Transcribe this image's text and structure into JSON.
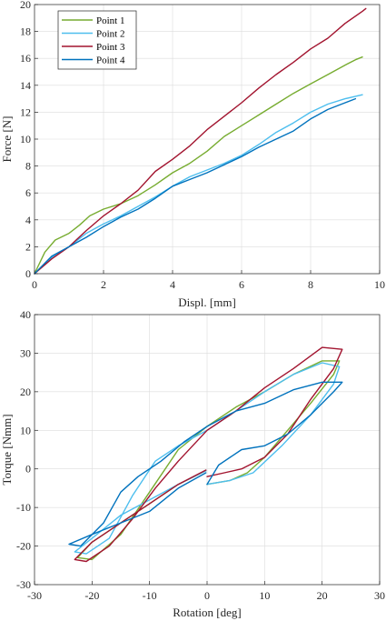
{
  "colors": {
    "point1": "#77ac30",
    "point2": "#4dbeee",
    "point3": "#a2142f",
    "point4": "#0072bd"
  },
  "chart_data": [
    {
      "type": "line",
      "xlabel": "Displ. [mm]",
      "ylabel": "Force [N]",
      "xlim": [
        0,
        10
      ],
      "ylim": [
        0,
        20
      ],
      "xticks": [
        0,
        2,
        4,
        6,
        8,
        10
      ],
      "yticks": [
        0,
        2,
        4,
        6,
        8,
        10,
        12,
        14,
        16,
        18,
        20
      ],
      "grid": true,
      "legend": "top-left",
      "series": [
        {
          "name": "Point 1",
          "color": "#77ac30",
          "x": [
            0,
            0.3,
            0.6,
            1.0,
            1.3,
            1.6,
            2.0,
            2.5,
            3.0,
            3.5,
            4.0,
            4.5,
            5.0,
            5.5,
            6.0,
            6.5,
            7.0,
            7.5,
            8.0,
            8.5,
            9.0,
            9.3,
            9.5
          ],
          "y": [
            0,
            1.6,
            2.5,
            3.0,
            3.6,
            4.3,
            4.8,
            5.2,
            5.8,
            6.6,
            7.5,
            8.2,
            9.1,
            10.2,
            11.0,
            11.8,
            12.6,
            13.4,
            14.1,
            14.8,
            15.5,
            15.9,
            16.1
          ]
        },
        {
          "name": "Point 2",
          "color": "#4dbeee",
          "x": [
            0,
            0.5,
            1.0,
            1.5,
            2.0,
            2.5,
            3.0,
            3.5,
            4.0,
            4.5,
            5.0,
            5.5,
            6.0,
            6.5,
            7.0,
            7.5,
            8.0,
            8.5,
            9.0,
            9.5
          ],
          "y": [
            0,
            1.2,
            2.0,
            3.0,
            3.7,
            4.3,
            5.0,
            5.7,
            6.5,
            7.2,
            7.7,
            8.2,
            8.8,
            9.6,
            10.5,
            11.2,
            12.0,
            12.6,
            13.0,
            13.3
          ]
        },
        {
          "name": "Point 3",
          "color": "#a2142f",
          "x": [
            0,
            0.5,
            1.0,
            1.5,
            2.0,
            2.5,
            3.0,
            3.5,
            4.0,
            4.5,
            5.0,
            5.5,
            6.0,
            6.5,
            7.0,
            7.5,
            8.0,
            8.5,
            9.0,
            9.5,
            9.6
          ],
          "y": [
            0,
            1.1,
            2.0,
            3.2,
            4.3,
            5.2,
            6.2,
            7.6,
            8.5,
            9.5,
            10.7,
            11.7,
            12.7,
            13.8,
            14.8,
            15.7,
            16.7,
            17.5,
            18.6,
            19.5,
            19.7
          ]
        },
        {
          "name": "Point 4",
          "color": "#0072bd",
          "x": [
            0,
            0.5,
            1.0,
            1.5,
            2.0,
            2.5,
            3.0,
            3.5,
            4.0,
            4.5,
            5.0,
            5.5,
            6.0,
            6.5,
            7.0,
            7.5,
            8.0,
            8.5,
            9.0,
            9.3
          ],
          "y": [
            0,
            1.3,
            2.0,
            2.7,
            3.5,
            4.2,
            4.8,
            5.6,
            6.5,
            7.0,
            7.5,
            8.1,
            8.7,
            9.4,
            10.0,
            10.6,
            11.5,
            12.2,
            12.7,
            13.0
          ]
        }
      ]
    },
    {
      "type": "line",
      "xlabel": "Rotation [deg]",
      "ylabel": "Torque [Nmm]",
      "xlim": [
        -30,
        30
      ],
      "ylim": [
        -30,
        40
      ],
      "xticks": [
        -30,
        -20,
        -10,
        0,
        10,
        20,
        30
      ],
      "yticks": [
        -30,
        -20,
        -10,
        0,
        10,
        20,
        30,
        40
      ],
      "grid": true,
      "series": [
        {
          "color": "#77ac30",
          "x": [
            -0.2,
            -5,
            -10,
            -15,
            -20,
            -22.5,
            -20,
            -15,
            -10,
            -5,
            0,
            5,
            10,
            15,
            20,
            23,
            22,
            18,
            14,
            10,
            7,
            4,
            0
          ],
          "y": [
            -0.5,
            -4,
            -9,
            -14,
            -19,
            -23,
            -23.5,
            -17,
            -6,
            5,
            11,
            16,
            20,
            24.5,
            28,
            28,
            24.5,
            17,
            10,
            3,
            -1,
            -3,
            -4
          ]
        },
        {
          "color": "#4dbeee",
          "x": [
            -0.2,
            -5,
            -10,
            -15,
            -20,
            -23,
            -21,
            -17,
            -13,
            -9,
            -5,
            0,
            5,
            10,
            15,
            20,
            23,
            22,
            18,
            13,
            8,
            4,
            0
          ],
          "y": [
            -0.5,
            -4,
            -8,
            -12,
            -18,
            -21.5,
            -22,
            -18,
            -7,
            2,
            6,
            10,
            15,
            20,
            24.5,
            27.5,
            26.5,
            22,
            14,
            6,
            -1,
            -3,
            -4
          ]
        },
        {
          "color": "#a2142f",
          "x": [
            -0.2,
            -5,
            -10,
            -15,
            -20,
            -23,
            -21,
            -17,
            -13,
            -9,
            -5,
            0,
            5,
            10,
            15,
            20,
            23.5,
            22,
            18,
            14,
            10,
            6,
            3,
            0
          ],
          "y": [
            -0.3,
            -4,
            -9,
            -14,
            -19,
            -23.5,
            -24,
            -20,
            -13,
            -5,
            2,
            10,
            15,
            21,
            26,
            31.5,
            31,
            26,
            18,
            9,
            3,
            0,
            -1,
            -2
          ]
        },
        {
          "color": "#0072bd",
          "x": [
            -0.2,
            -5,
            -10,
            -15,
            -20,
            -24,
            -22,
            -18,
            -15,
            -12,
            -8,
            -4,
            0,
            5,
            10,
            15,
            20,
            23.5,
            22,
            18,
            14,
            10,
            6,
            2,
            0
          ],
          "y": [
            -1,
            -5,
            -11,
            -14,
            -17,
            -19.5,
            -20,
            -14,
            -6,
            -2,
            2,
            7,
            11,
            15,
            17,
            20.5,
            22.5,
            22.5,
            20,
            14,
            9,
            6,
            5,
            1,
            -4
          ]
        }
      ]
    }
  ]
}
